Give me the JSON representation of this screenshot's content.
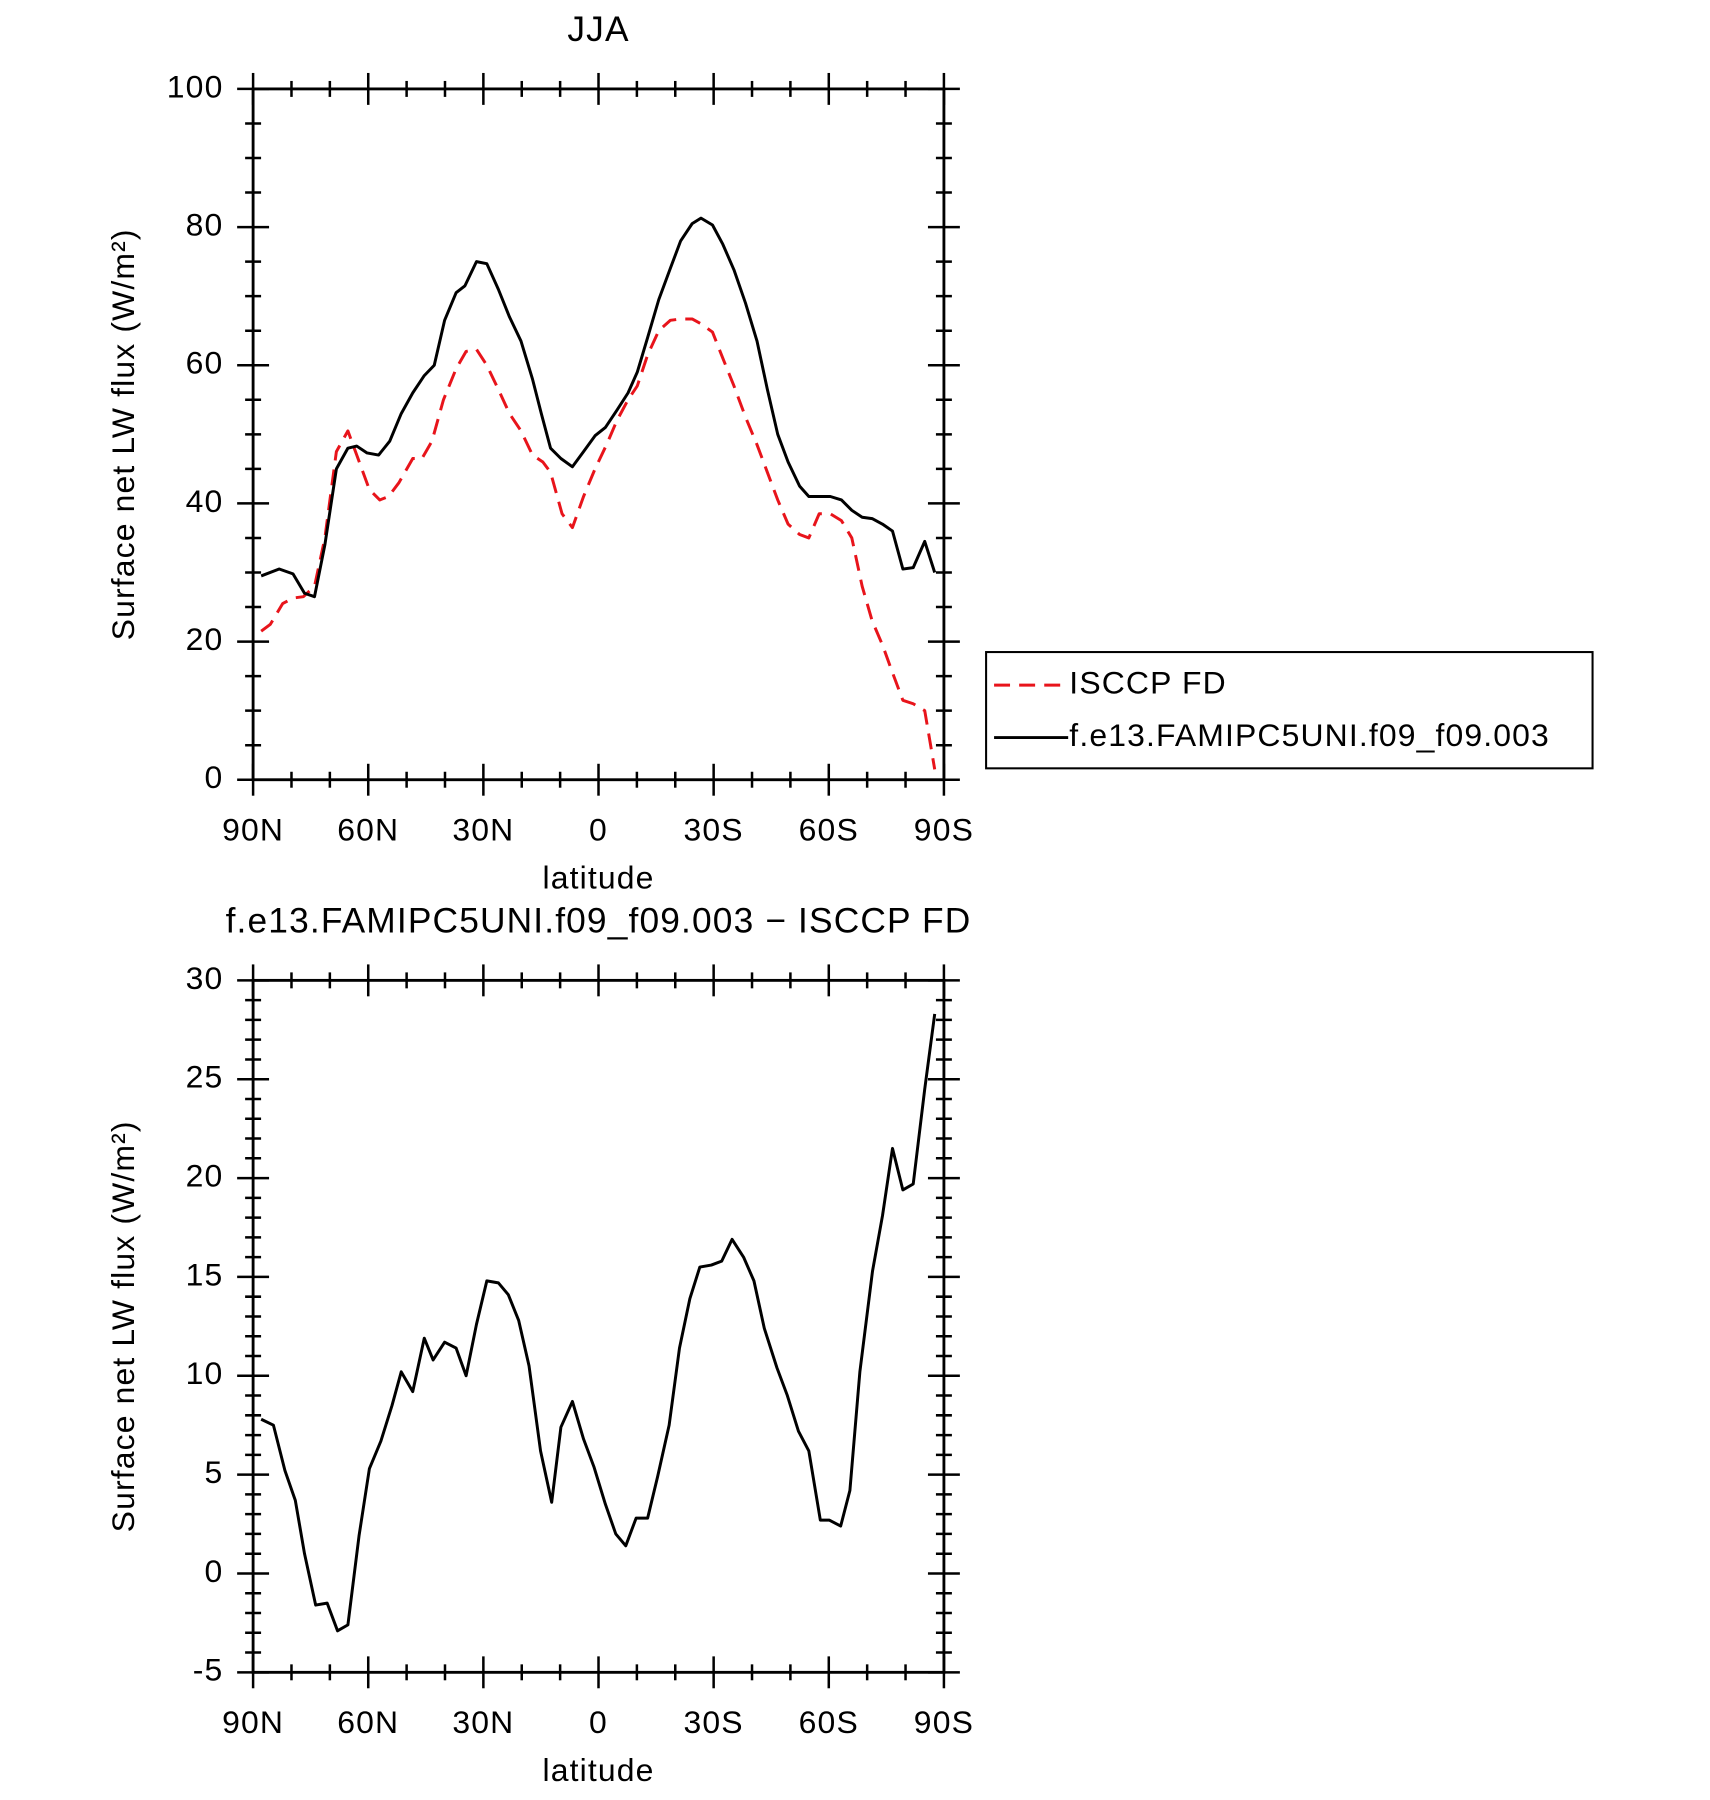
{
  "chart_data": [
    {
      "type": "line",
      "title": "JJA",
      "x_label": "latitude",
      "y_label": "Surface net LW flux (W/m²)",
      "xlim": [
        90,
        -90
      ],
      "xticks": [
        {
          "value": 90,
          "label": "90N"
        },
        {
          "value": 60,
          "label": "60N"
        },
        {
          "value": 30,
          "label": "30N"
        },
        0,
        {
          "value": -30,
          "label": "30S"
        },
        {
          "value": -60,
          "label": "60S"
        },
        {
          "value": -90,
          "label": "90S"
        }
      ],
      "xminorticks": [
        80,
        70,
        50,
        40,
        20,
        10,
        -10,
        -20,
        -40,
        -50,
        -70,
        -80
      ],
      "ylim": [
        0,
        100
      ],
      "yticks": [
        0,
        20,
        40,
        60,
        80,
        100
      ],
      "yminorticks": [
        5,
        10,
        15,
        25,
        30,
        35,
        45,
        50,
        55,
        65,
        70,
        75,
        85,
        90,
        95
      ],
      "legend": "right",
      "series": [
        {
          "name": "ISCCP FD",
          "color": "#e8141b",
          "dash": true,
          "x": [
            87.9,
            85.5,
            82.3,
            79.6,
            76.9,
            74,
            71.3,
            68.3,
            65.3,
            63,
            59.7,
            57,
            54.7,
            52,
            48.4,
            46,
            43.4,
            40.4,
            37.1,
            34.5,
            31.8,
            29.1,
            26.1,
            23.2,
            20.2,
            17.2,
            14.5,
            12.5,
            9.5,
            6.8,
            3.9,
            0.9,
            -2.1,
            -4.8,
            -7.7,
            -10.1,
            -12.8,
            -15.7,
            -18.7,
            -21.4,
            -24.4,
            -26.7,
            -29.7,
            -32.4,
            -35.3,
            -38.3,
            -41.3,
            -44,
            -46.7,
            -49.4,
            -52.4,
            -54.8,
            -57.5,
            -60.4,
            -63.3,
            -66,
            -68.7,
            -71.3,
            -74,
            -76.6,
            -79.3,
            -82,
            -85,
            -87.6
          ],
          "values": [
            21.5,
            22.5,
            25.5,
            26.3,
            26.5,
            28,
            35,
            47.5,
            50.5,
            47,
            42,
            40.5,
            41,
            43,
            46.5,
            46.5,
            49,
            55,
            59.5,
            62,
            62.3,
            60,
            56.5,
            53,
            50.5,
            47,
            46,
            44.5,
            38.5,
            36.5,
            41,
            45,
            48.5,
            52,
            55,
            57,
            61.5,
            65,
            66.5,
            66.7,
            66.7,
            66,
            64.8,
            61,
            57,
            52.5,
            48.5,
            44.5,
            40.5,
            37,
            35.5,
            35,
            38.5,
            38.5,
            37.5,
            35,
            28,
            23,
            19.5,
            15.5,
            11.5,
            11,
            10,
            1.5
          ]
        },
        {
          "name": "f.e13.FAMIPC5UNI.f09_f09.003",
          "color": "#000000",
          "dash": false,
          "x": [
            87.9,
            83.2,
            79.6,
            76.6,
            74,
            71.3,
            68.3,
            65.3,
            63,
            60.3,
            57.3,
            54.4,
            51.4,
            48.4,
            45.4,
            42.8,
            40.1,
            37.1,
            34.8,
            31.8,
            29.1,
            26.1,
            23.2,
            20.2,
            17.2,
            14.9,
            12.5,
            9.8,
            6.8,
            3.9,
            0.9,
            -1.8,
            -4.8,
            -7.7,
            -10.1,
            -12.8,
            -15.7,
            -18.7,
            -21.4,
            -24.4,
            -26.7,
            -29.7,
            -32.4,
            -35.3,
            -38.3,
            -41.3,
            -44,
            -46.7,
            -49.4,
            -52.4,
            -54.8,
            -58.1,
            -60.4,
            -63.3,
            -66,
            -68.7,
            -71.3,
            -74,
            -76.6,
            -79.3,
            -82,
            -85,
            -87.6
          ],
          "values": [
            29.5,
            30.5,
            29.8,
            27,
            26.5,
            34,
            45,
            48,
            48.3,
            47.3,
            47,
            49,
            53,
            56,
            58.5,
            60,
            66.5,
            70.5,
            71.5,
            75,
            74.7,
            71,
            67,
            63.5,
            58,
            53,
            48,
            46.5,
            45.3,
            47.5,
            49.8,
            51,
            53.5,
            56,
            59,
            64,
            69.5,
            74,
            78,
            80.5,
            81.3,
            80.3,
            77.5,
            73.8,
            69,
            63.5,
            56.5,
            50,
            46,
            42.5,
            41,
            41,
            41,
            40.5,
            39,
            38,
            37.8,
            37,
            36,
            30.5,
            30.7,
            34.5,
            30
          ]
        }
      ]
    },
    {
      "type": "line",
      "title": "f.e13.FAMIPC5UNI.f09_f09.003 − ISCCP FD",
      "x_label": "latitude",
      "y_label": "Surface net LW flux (W/m²)",
      "xlim": [
        90,
        -90
      ],
      "xticks": [
        {
          "value": 90,
          "label": "90N"
        },
        {
          "value": 60,
          "label": "60N"
        },
        {
          "value": 30,
          "label": "30N"
        },
        0,
        {
          "value": -30,
          "label": "30S"
        },
        {
          "value": -60,
          "label": "60S"
        },
        {
          "value": -90,
          "label": "90S"
        }
      ],
      "xminorticks": [
        80,
        70,
        50,
        40,
        20,
        10,
        -10,
        -20,
        -40,
        -50,
        -70,
        -80
      ],
      "ylim": [
        -5,
        30
      ],
      "yticks": [
        -5,
        0,
        5,
        10,
        15,
        20,
        25,
        30
      ],
      "yminorticks": [
        -4,
        -3,
        -2,
        -1,
        1,
        2,
        3,
        4,
        6,
        7,
        8,
        9,
        11,
        12,
        13,
        14,
        16,
        17,
        18,
        19,
        21,
        22,
        23,
        24,
        26,
        27,
        28,
        29
      ],
      "color": "#000000",
      "x": [
        87.9,
        84.7,
        81.7,
        79,
        76.6,
        73.7,
        70.7,
        68,
        65.3,
        62.4,
        59.7,
        56.7,
        53.8,
        51.4,
        48.4,
        45.4,
        43.1,
        40.1,
        37.1,
        34.5,
        31.8,
        29.1,
        26.1,
        23.5,
        20.8,
        18.1,
        15.1,
        12.2,
        9.8,
        6.8,
        3.9,
        1.2,
        -1.8,
        -4.5,
        -7.1,
        -9.8,
        -12.8,
        -15.4,
        -18.4,
        -21.1,
        -23.8,
        -26.4,
        -29.4,
        -32.1,
        -34.8,
        -37.8,
        -40.5,
        -43.2,
        -46.5,
        -49.2,
        -52.1,
        -54.8,
        -57.8,
        -60.1,
        -63.1,
        -65.5,
        -68.1,
        -71.4,
        -74,
        -76.6,
        -79.3,
        -82,
        -85,
        -87.6
      ],
      "values": [
        7.8,
        7.5,
        5.2,
        3.7,
        1,
        -1.6,
        -1.5,
        -2.9,
        -2.6,
        1.9,
        5.3,
        6.7,
        8.5,
        10.2,
        9.2,
        11.9,
        10.8,
        11.7,
        11.4,
        10,
        12.6,
        14.8,
        14.7,
        14.1,
        12.8,
        10.5,
        6.2,
        3.6,
        7.4,
        8.7,
        6.8,
        5.4,
        3.5,
        2,
        1.4,
        2.8,
        2.8,
        4.9,
        7.5,
        11.4,
        13.9,
        15.5,
        15.6,
        15.8,
        16.9,
        16,
        14.8,
        12.4,
        10.4,
        9,
        7.2,
        6.2,
        2.7,
        2.7,
        2.4,
        4.2,
        10.2,
        15.3,
        18.1,
        21.5,
        19.4,
        19.7,
        24.5,
        28.3
      ]
    }
  ]
}
